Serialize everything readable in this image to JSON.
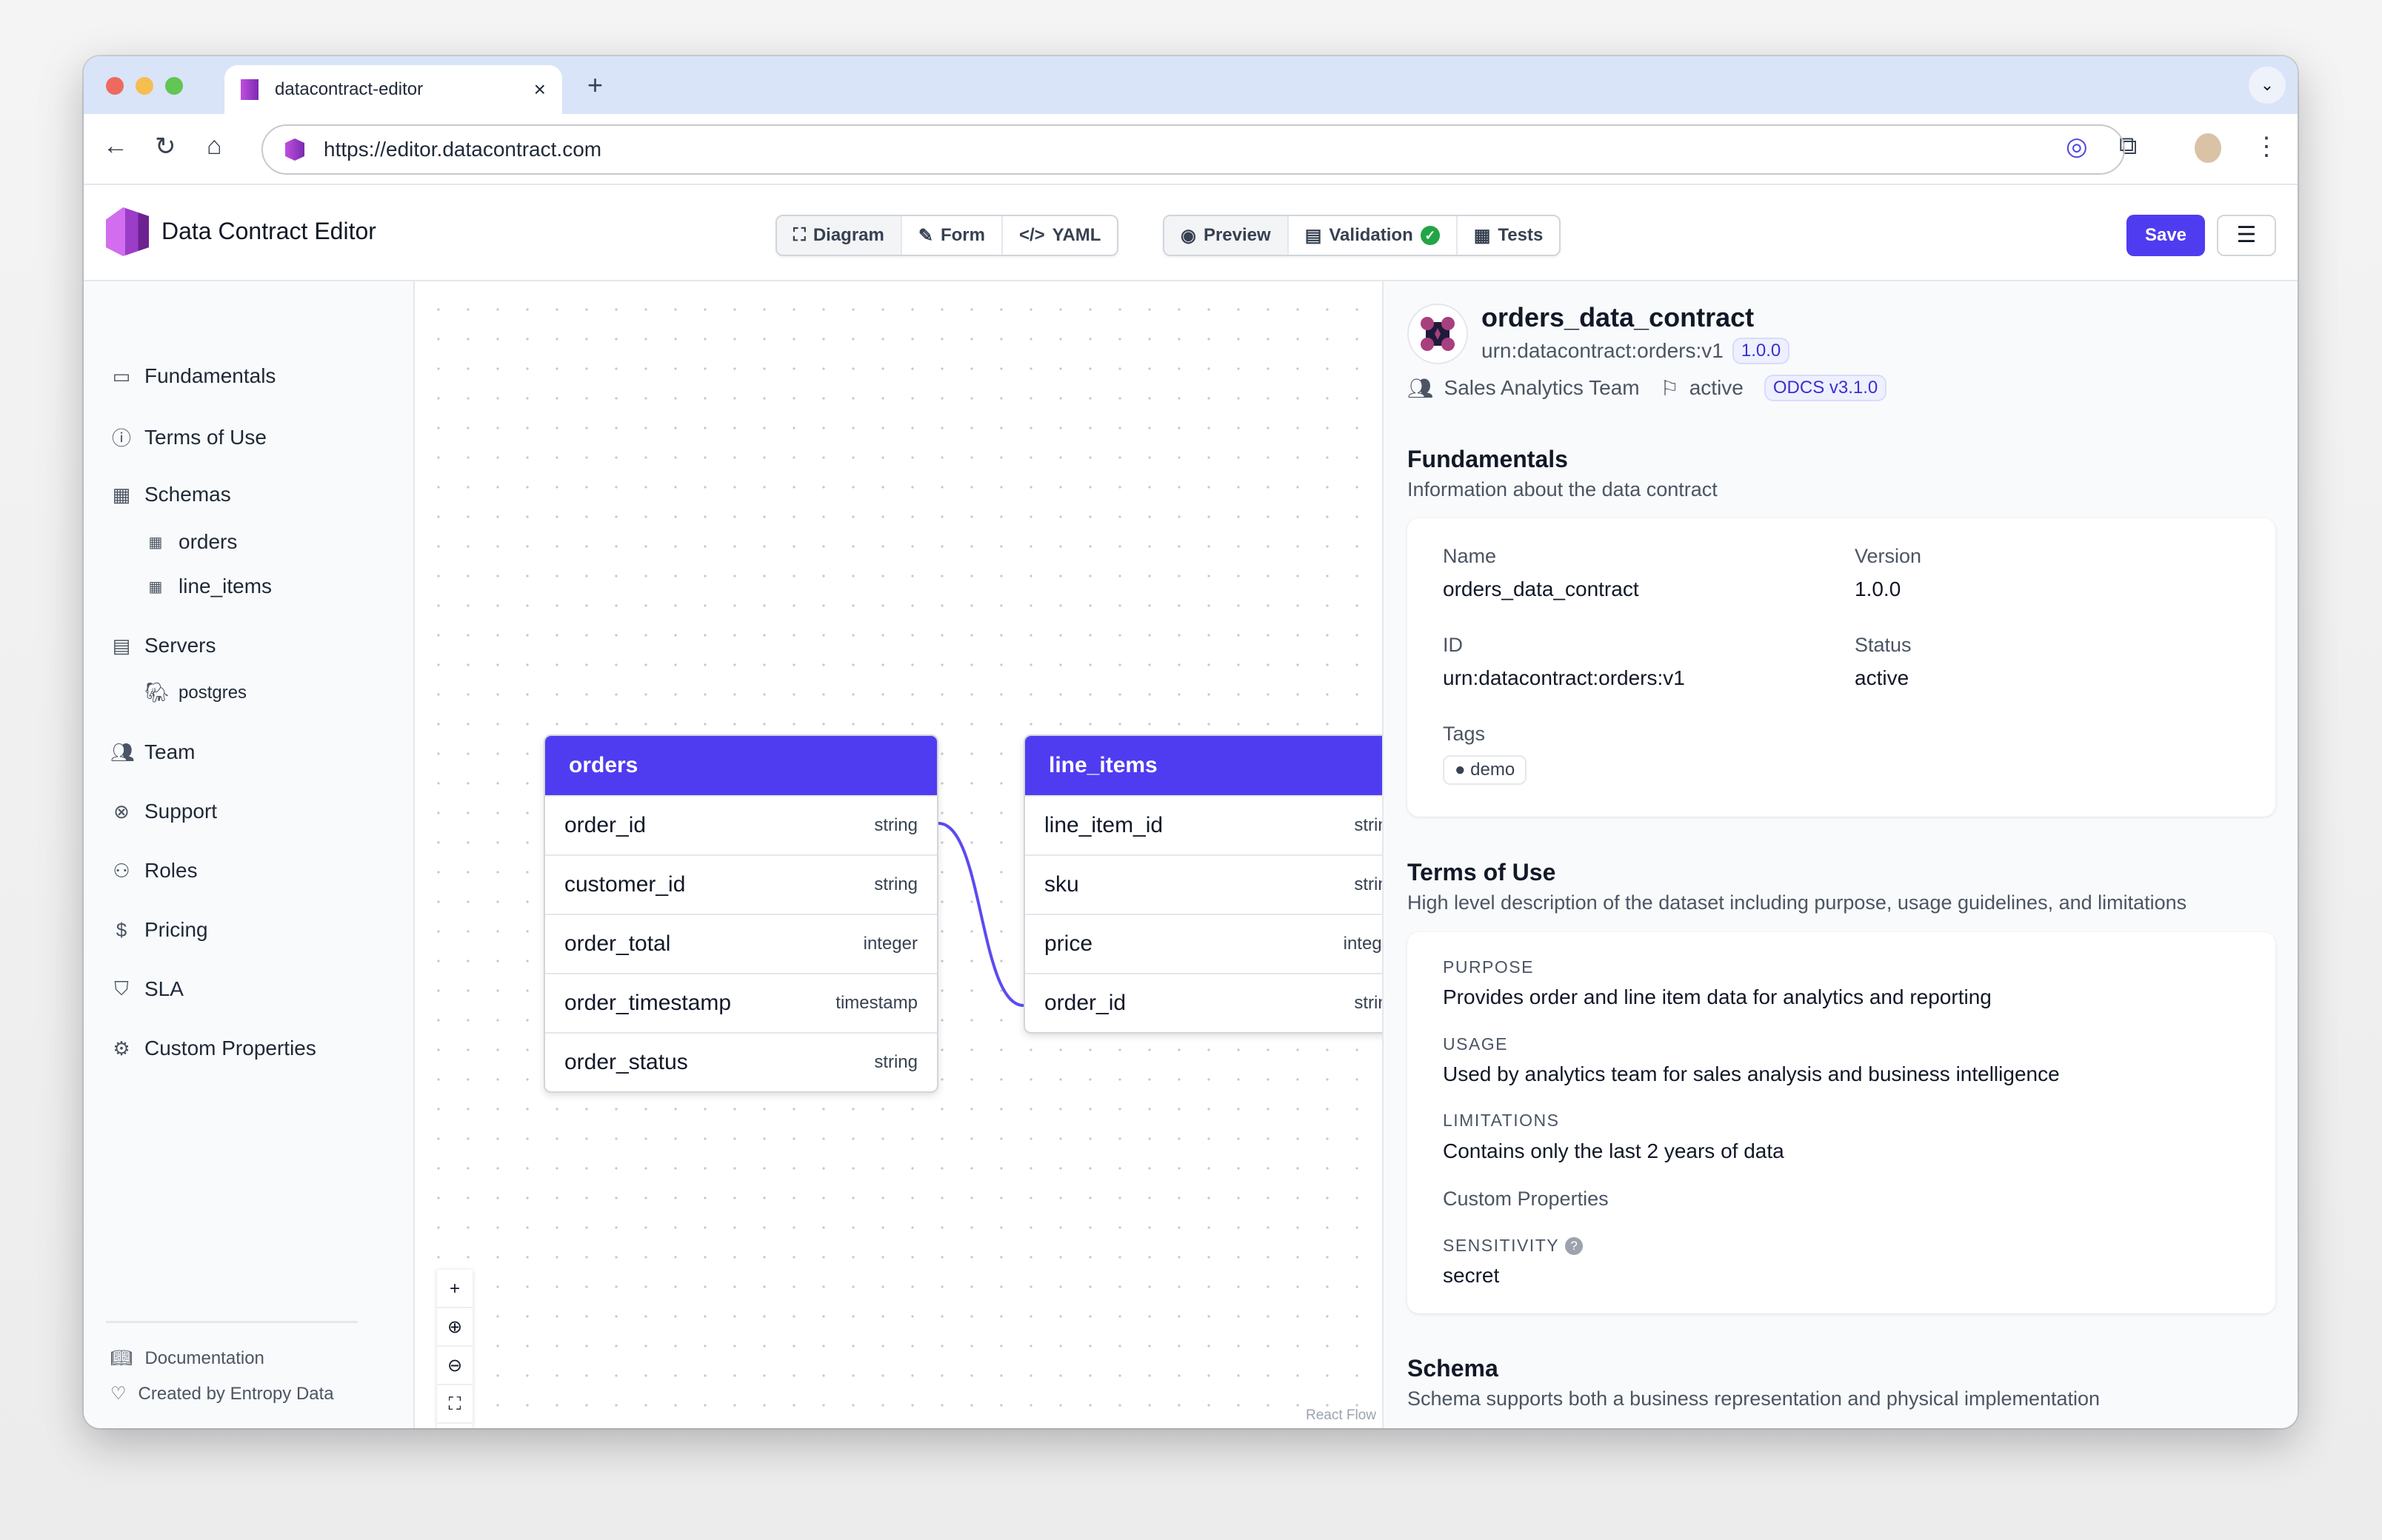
{
  "browser": {
    "tab_title": "datacontract-editor",
    "url": "https://editor.datacontract.com"
  },
  "app": {
    "title": "Data Contract Editor",
    "view_tabs": [
      {
        "label": "Diagram",
        "icon": "diagram-icon"
      },
      {
        "label": "Form",
        "icon": "edit-icon"
      },
      {
        "label": "YAML",
        "icon": "code-icon"
      }
    ],
    "panel_tabs": [
      {
        "label": "Preview",
        "icon": "eye-icon"
      },
      {
        "label": "Validation",
        "icon": "document-check-icon"
      },
      {
        "label": "Tests",
        "icon": "table-icon"
      }
    ],
    "save_label": "Save"
  },
  "sidebar": {
    "items": [
      {
        "label": "Fundamentals",
        "icon": "id-card-icon",
        "level": 0
      },
      {
        "label": "Terms of Use",
        "icon": "info-icon",
        "level": 0
      },
      {
        "label": "Schemas",
        "icon": "tables-icon",
        "level": 0
      },
      {
        "label": "orders",
        "icon": "table-icon",
        "level": 1
      },
      {
        "label": "line_items",
        "icon": "table-icon",
        "level": 1
      },
      {
        "label": "Servers",
        "icon": "server-icon",
        "level": 0
      },
      {
        "label": "postgres",
        "icon": "postgres-icon",
        "level": 1
      },
      {
        "label": "Team",
        "icon": "users-icon",
        "level": 0
      },
      {
        "label": "Support",
        "icon": "lifebuoy-icon",
        "level": 0
      },
      {
        "label": "Roles",
        "icon": "user-group-icon",
        "level": 0
      },
      {
        "label": "Pricing",
        "icon": "dollar-icon",
        "level": 0
      },
      {
        "label": "SLA",
        "icon": "shield-check-icon",
        "level": 0
      },
      {
        "label": "Custom Properties",
        "icon": "gear-icon",
        "level": 0
      }
    ],
    "footer": {
      "documentation": "Documentation",
      "credit": "Created by Entropy Data"
    }
  },
  "diagram": {
    "nodes": [
      {
        "name": "orders",
        "fields": [
          [
            "order_id",
            "string"
          ],
          [
            "customer_id",
            "string"
          ],
          [
            "order_total",
            "integer"
          ],
          [
            "order_timestamp",
            "timestamp"
          ],
          [
            "order_status",
            "string"
          ]
        ]
      },
      {
        "name": "line_items",
        "fields": [
          [
            "line_item_id",
            "string"
          ],
          [
            "sku",
            "string"
          ],
          [
            "price",
            "integer"
          ],
          [
            "order_id",
            "string"
          ]
        ]
      }
    ],
    "edge": {
      "from": "orders.order_id",
      "to": "line_items.order_id"
    },
    "attribution": "React Flow",
    "edge_color": "#5b4bf0"
  },
  "preview": {
    "name": "orders_data_contract",
    "id": "urn:datacontract:orders:v1",
    "version": "1.0.0",
    "team": "Sales Analytics Team",
    "status": "active",
    "standard": "ODCS v3.1.0",
    "fundamentals": {
      "title": "Fundamentals",
      "description": "Information about the data contract",
      "name_label": "Name",
      "name": "orders_data_contract",
      "version_label": "Version",
      "version": "1.0.0",
      "id_label": "ID",
      "id": "urn:datacontract:orders:v1",
      "status_label": "Status",
      "status": "active",
      "tags_label": "Tags",
      "tags": [
        "demo"
      ]
    },
    "terms": {
      "title": "Terms of Use",
      "description": "High level description of the dataset including purpose, usage guidelines, and limitations",
      "purpose_label": "PURPOSE",
      "purpose": "Provides order and line item data for analytics and reporting",
      "usage_label": "USAGE",
      "usage": "Used by analytics team for sales analysis and business intelligence",
      "limitations_label": "LIMITATIONS",
      "limitations": "Contains only the last 2 years of data",
      "custom_label": "Custom Properties",
      "sensitivity_label": "SENSITIVITY",
      "sensitivity": "secret"
    },
    "schema": {
      "title": "Schema",
      "description": "Schema supports both a business representation and physical implementation"
    }
  },
  "colors": {
    "accent": "#4f3cf0",
    "success": "#22a447"
  }
}
